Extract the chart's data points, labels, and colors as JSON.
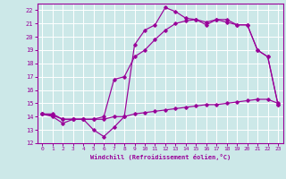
{
  "xlabel": "Windchill (Refroidissement éolien,°C)",
  "background_color": "#cce8e8",
  "line_color": "#990099",
  "grid_color": "#ffffff",
  "xlim": [
    -0.5,
    23.5
  ],
  "ylim": [
    12,
    22.5
  ],
  "yticks": [
    12,
    13,
    14,
    15,
    16,
    17,
    18,
    19,
    20,
    21,
    22
  ],
  "xticks": [
    0,
    1,
    2,
    3,
    4,
    5,
    6,
    7,
    8,
    9,
    10,
    11,
    12,
    13,
    14,
    15,
    16,
    17,
    18,
    19,
    20,
    21,
    22,
    23
  ],
  "line1_jagged": {
    "x": [
      0,
      1,
      2,
      3,
      4,
      5,
      6,
      7,
      8,
      9,
      10,
      11,
      12,
      13,
      14,
      15,
      16,
      17,
      18,
      19,
      20,
      21,
      22,
      23
    ],
    "y": [
      14.2,
      14.0,
      13.5,
      13.8,
      13.8,
      13.0,
      12.5,
      13.2,
      14.0,
      19.4,
      20.5,
      20.9,
      22.2,
      21.9,
      21.4,
      21.3,
      20.9,
      21.3,
      21.1,
      20.9,
      20.9,
      19.0,
      18.5,
      14.9
    ]
  },
  "line2_smooth": {
    "x": [
      0,
      1,
      2,
      3,
      4,
      5,
      6,
      7,
      8,
      9,
      10,
      11,
      12,
      13,
      14,
      15,
      16,
      17,
      18,
      19,
      20,
      21,
      22,
      23
    ],
    "y": [
      14.2,
      14.2,
      13.8,
      13.8,
      13.8,
      13.8,
      14.0,
      16.8,
      17.0,
      18.5,
      19.0,
      19.8,
      20.5,
      21.0,
      21.2,
      21.3,
      21.1,
      21.3,
      21.3,
      20.9,
      20.9,
      19.0,
      18.5,
      14.9
    ]
  },
  "line3_diagonal": {
    "x": [
      0,
      1,
      2,
      3,
      4,
      5,
      6,
      7,
      8,
      9,
      10,
      11,
      12,
      13,
      14,
      15,
      16,
      17,
      18,
      19,
      20,
      21,
      22,
      23
    ],
    "y": [
      14.2,
      14.1,
      13.8,
      13.8,
      13.8,
      13.8,
      13.8,
      14.0,
      14.0,
      14.2,
      14.3,
      14.4,
      14.5,
      14.6,
      14.7,
      14.8,
      14.9,
      14.9,
      15.0,
      15.1,
      15.2,
      15.3,
      15.3,
      15.0
    ]
  }
}
